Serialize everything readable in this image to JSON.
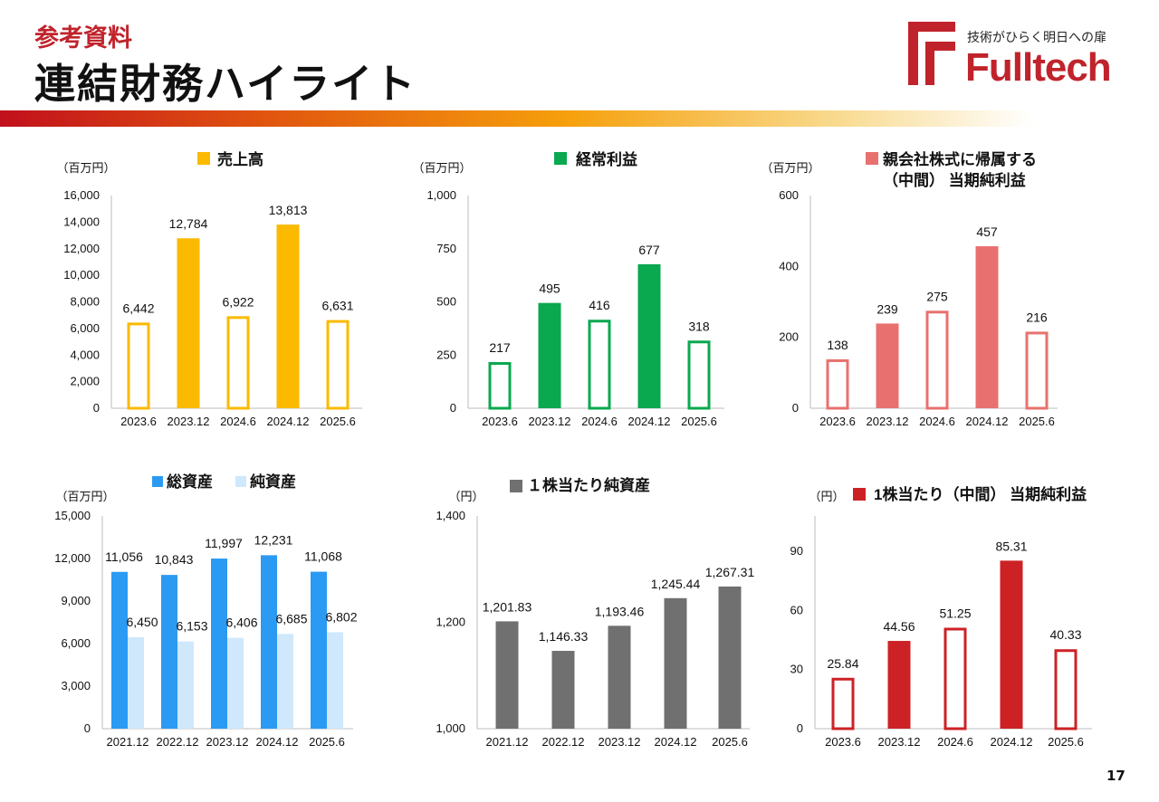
{
  "header": {
    "subtitle": "参考資料",
    "title": "連結財務ハイライト",
    "logo_tagline": "技術がひらく明日への扉",
    "logo_name": "Fulltech"
  },
  "page_number": "17",
  "colors": {
    "brand_red": "#c0232b",
    "sales": "#fbba00",
    "ordinary": "#0aa84f",
    "netprofit": "#e8716f",
    "total_assets": "#2b9af3",
    "net_assets": "#cfe8fc",
    "bps": "#707070",
    "eps": "#cc2226"
  },
  "chart_data": [
    {
      "id": "sales",
      "type": "bar",
      "title": "売上高",
      "unit": "（百万円）",
      "categories": [
        "2023.6",
        "2023.12",
        "2024.6",
        "2024.12",
        "2025.6"
      ],
      "values": [
        6442,
        12784,
        6922,
        13813,
        6631
      ],
      "labels": [
        "6,442",
        "12,784",
        "6,922",
        "13,813",
        "6,631"
      ],
      "hollow": [
        true,
        false,
        true,
        false,
        true
      ],
      "ylim": [
        0,
        16000
      ],
      "ticks": [
        0,
        2000,
        4000,
        6000,
        8000,
        10000,
        12000,
        14000,
        16000
      ],
      "tick_labels": [
        "0",
        "2,000",
        "4,000",
        "6,000",
        "8,000",
        "10,000",
        "12,000",
        "14,000",
        "16,000"
      ],
      "color": "#fbba00",
      "legend_position": "top",
      "grid": false
    },
    {
      "id": "ordinary",
      "type": "bar",
      "title": "経常利益",
      "unit": "（百万円）",
      "categories": [
        "2023.6",
        "2023.12",
        "2024.6",
        "2024.12",
        "2025.6"
      ],
      "values": [
        217,
        495,
        416,
        677,
        318
      ],
      "labels": [
        "217",
        "495",
        "416",
        "677",
        "318"
      ],
      "hollow": [
        true,
        false,
        true,
        false,
        true
      ],
      "ylim": [
        0,
        1000
      ],
      "ticks": [
        0,
        250,
        500,
        750,
        1000
      ],
      "tick_labels": [
        "0",
        "250",
        "500",
        "750",
        "1,000"
      ],
      "color": "#0aa84f",
      "legend_position": "top",
      "grid": false
    },
    {
      "id": "netprofit",
      "type": "bar",
      "title_lines": [
        "親会社株式に帰属する",
        "（中間） 当期純利益"
      ],
      "unit": "（百万円）",
      "categories": [
        "2023.6",
        "2023.12",
        "2024.6",
        "2024.12",
        "2025.6"
      ],
      "values": [
        138,
        239,
        275,
        457,
        216
      ],
      "labels": [
        "138",
        "239",
        "275",
        "457",
        "216"
      ],
      "hollow": [
        true,
        false,
        true,
        false,
        true
      ],
      "ylim": [
        0,
        600
      ],
      "ticks": [
        0,
        200,
        400,
        600
      ],
      "tick_labels": [
        "0",
        "200",
        "400",
        "600"
      ],
      "color": "#e8716f",
      "legend_position": "top",
      "grid": false
    },
    {
      "id": "assets",
      "type": "bar",
      "unit": "（百万円）",
      "categories": [
        "2021.12",
        "2022.12",
        "2023.12",
        "2024.12",
        "2025.6"
      ],
      "series": [
        {
          "name": "総資産",
          "values": [
            11056,
            10843,
            11997,
            12231,
            11068
          ],
          "labels": [
            "11,056",
            "10,843",
            "11,997",
            "12,231",
            "11,068"
          ],
          "color": "#2b9af3"
        },
        {
          "name": "純資産",
          "values": [
            6450,
            6153,
            6406,
            6685,
            6802
          ],
          "labels": [
            "6,450",
            "6,153",
            "6,406",
            "6,685",
            "6,802"
          ],
          "color": "#cfe8fc"
        }
      ],
      "ylim": [
        0,
        15000
      ],
      "ticks": [
        0,
        3000,
        6000,
        9000,
        12000,
        15000
      ],
      "tick_labels": [
        "0",
        "3,000",
        "6,000",
        "9,000",
        "12,000",
        "15,000"
      ],
      "legend_position": "top",
      "grid": false
    },
    {
      "id": "bps",
      "type": "bar",
      "title": "１株当たり純資産",
      "unit": "（円）",
      "categories": [
        "2021.12",
        "2022.12",
        "2023.12",
        "2024.12",
        "2025.6"
      ],
      "values": [
        1201.83,
        1146.33,
        1193.46,
        1245.44,
        1267.31
      ],
      "labels": [
        "1,201.83",
        "1,146.33",
        "1,193.46",
        "1,245.44",
        "1,267.31"
      ],
      "hollow": [
        false,
        false,
        false,
        false,
        false
      ],
      "ylim": [
        1000,
        1400
      ],
      "ticks": [
        1000,
        1200,
        1400
      ],
      "tick_labels": [
        "1,000",
        "1,200",
        "1,400"
      ],
      "color": "#707070",
      "legend_position": "top",
      "grid": false
    },
    {
      "id": "eps",
      "type": "bar",
      "title": "1株当たり（中間） 当期純利益",
      "unit": "（円）",
      "categories": [
        "2023.6",
        "2023.12",
        "2024.6",
        "2024.12",
        "2025.6"
      ],
      "values": [
        25.84,
        44.56,
        51.25,
        85.31,
        40.33
      ],
      "labels": [
        "25.84",
        "44.56",
        "51.25",
        "85.31",
        "40.33"
      ],
      "hollow": [
        true,
        false,
        true,
        false,
        true
      ],
      "ylim": [
        0,
        108
      ],
      "ticks": [
        0,
        30,
        60,
        90
      ],
      "tick_labels": [
        "0",
        "30",
        "60",
        "90"
      ],
      "color": "#cc2226",
      "legend_position": "top",
      "grid": false
    }
  ]
}
